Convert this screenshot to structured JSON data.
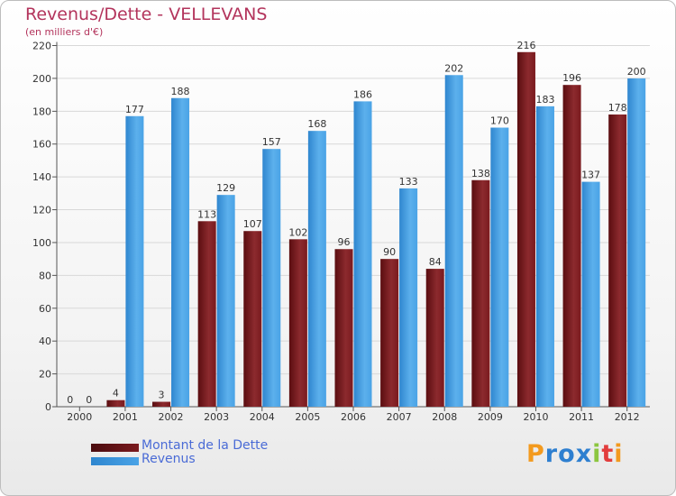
{
  "chart_data": {
    "type": "bar",
    "title": "Revenus/Dette - VELLEVANS",
    "subtitle": "(en milliers d'€)",
    "xlabel": "",
    "ylabel": "",
    "ylim": [
      0,
      220
    ],
    "yticks": [
      0,
      20,
      40,
      60,
      80,
      100,
      120,
      140,
      160,
      180,
      200,
      220
    ],
    "categories": [
      "2000",
      "2001",
      "2002",
      "2003",
      "2004",
      "2005",
      "2006",
      "2007",
      "2008",
      "2009",
      "2010",
      "2011",
      "2012"
    ],
    "series": [
      {
        "name": "Montant de la Dette",
        "color": "#7a1a1e",
        "values": [
          0,
          4,
          3,
          113,
          107,
          102,
          96,
          90,
          84,
          138,
          216,
          196,
          178
        ]
      },
      {
        "name": "Revenus",
        "color": "#4aa3e6",
        "values": [
          0,
          177,
          188,
          129,
          157,
          168,
          186,
          133,
          202,
          170,
          183,
          137,
          200
        ]
      }
    ],
    "legend_position": "bottom-left"
  },
  "logo": {
    "letters": [
      "P",
      "r",
      "o",
      "x",
      "i",
      "t",
      "i"
    ],
    "colors": [
      "#f39a1e",
      "#2e7fd0",
      "#2e7fd0",
      "#2e7fd0",
      "#8cc63f",
      "#e23d3d",
      "#f39a1e"
    ]
  }
}
